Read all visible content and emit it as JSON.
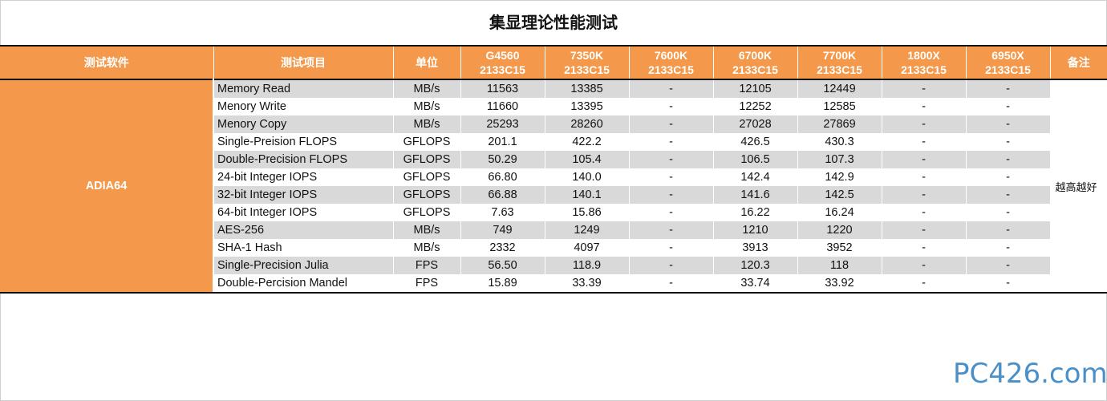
{
  "title": "集显理论性能测试",
  "header": {
    "software": "测试软件",
    "item": "测试项目",
    "unit": "单位",
    "cpus": [
      {
        "name": "G4560",
        "mem": "2133C15"
      },
      {
        "name": "7350K",
        "mem": "2133C15"
      },
      {
        "name": "7600K",
        "mem": "2133C15"
      },
      {
        "name": "6700K",
        "mem": "2133C15"
      },
      {
        "name": "7700K",
        "mem": "2133C15"
      },
      {
        "name": "1800X",
        "mem": "2133C15"
      },
      {
        "name": "6950X",
        "mem": "2133C15"
      }
    ],
    "note": "备注"
  },
  "software": "ADIA64",
  "note": "越高越好",
  "rows": [
    {
      "item": "Memory Read",
      "unit": "MB/s",
      "values": [
        "11563",
        "13385",
        "-",
        "12105",
        "12449",
        "-",
        "-"
      ]
    },
    {
      "item": "Menory Write",
      "unit": "MB/s",
      "values": [
        "11660",
        "13395",
        "-",
        "12252",
        "12585",
        "-",
        "-"
      ]
    },
    {
      "item": "Menory Copy",
      "unit": "MB/s",
      "values": [
        "25293",
        "28260",
        "-",
        "27028",
        "27869",
        "-",
        "-"
      ]
    },
    {
      "item": "Single-Preision FLOPS",
      "unit": "GFLOPS",
      "values": [
        "201.1",
        "422.2",
        "-",
        "426.5",
        "430.3",
        "-",
        "-"
      ]
    },
    {
      "item": "Double-Precision FLOPS",
      "unit": "GFLOPS",
      "values": [
        "50.29",
        "105.4",
        "-",
        "106.5",
        "107.3",
        "-",
        "-"
      ]
    },
    {
      "item": "24-bit Integer IOPS",
      "unit": "GFLOPS",
      "values": [
        "66.80",
        "140.0",
        "-",
        "142.4",
        "142.9",
        "-",
        "-"
      ]
    },
    {
      "item": "32-bit Integer IOPS",
      "unit": "GFLOPS",
      "values": [
        "66.88",
        "140.1",
        "-",
        "141.6",
        "142.5",
        "-",
        "-"
      ]
    },
    {
      "item": "64-bit Integer IOPS",
      "unit": "GFLOPS",
      "values": [
        "7.63",
        "15.86",
        "-",
        "16.22",
        "16.24",
        "-",
        "-"
      ]
    },
    {
      "item": "AES-256",
      "unit": "MB/s",
      "values": [
        "749",
        "1249",
        "-",
        "1210",
        "1220",
        "-",
        "-"
      ]
    },
    {
      "item": "SHA-1 Hash",
      "unit": "MB/s",
      "values": [
        "2332",
        "4097",
        "-",
        "3913",
        "3952",
        "-",
        "-"
      ]
    },
    {
      "item": "Single-Precision Julia",
      "unit": "FPS",
      "values": [
        "56.50",
        "118.9",
        "-",
        "120.3",
        "118",
        "-",
        "-"
      ]
    },
    {
      "item": "Double-Percision Mandel",
      "unit": "FPS",
      "values": [
        "15.89",
        "33.39",
        "-",
        "33.74",
        "33.92",
        "-",
        "-"
      ]
    }
  ],
  "logo": "PC426.com"
}
